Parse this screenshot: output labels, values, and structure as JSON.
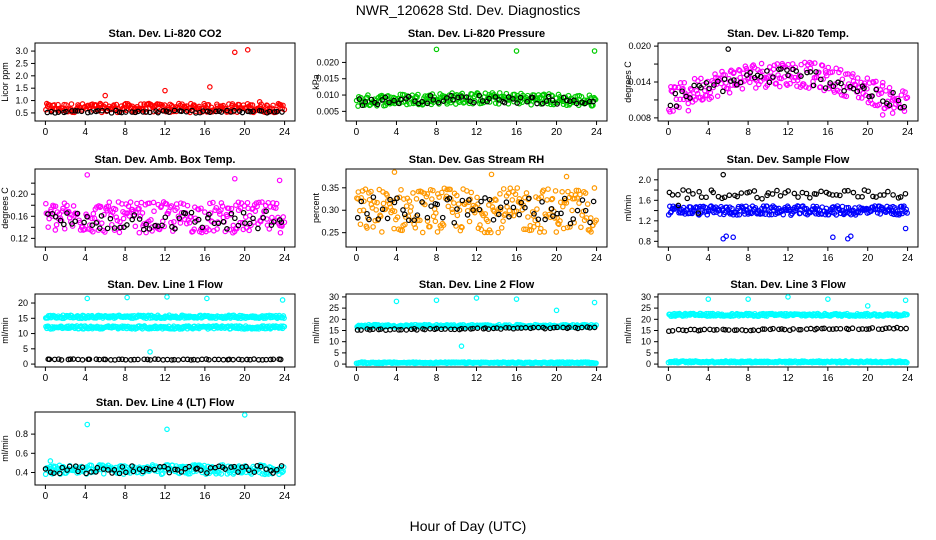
{
  "figure": {
    "title": "NWR_120628  Std. Dev. Diagnostics",
    "xlabel": "Hour of Day (UTC)"
  },
  "chart_data": [
    {
      "type": "scatter",
      "title": "Stan. Dev. Li-820 CO2",
      "ylabel": "Licor ppm",
      "xlim": [
        0,
        24
      ],
      "ylim": [
        0.3,
        3.2
      ],
      "xticks": [
        0,
        4,
        8,
        12,
        16,
        20,
        24
      ],
      "yticks": [
        0.5,
        1.0,
        1.5,
        2.0,
        2.5,
        3.0
      ],
      "ytick_labels": [
        "0.5",
        "1.0",
        "1.5",
        "2.0",
        "2.5",
        "3.0"
      ],
      "series": [
        {
          "color": "#ff0000",
          "band": {
            "center": 0.7,
            "spread": 0.18
          },
          "outliers": [
            [
              12,
              1.4
            ],
            [
              16.5,
              1.55
            ],
            [
              19,
              2.95
            ],
            [
              20.3,
              3.05
            ],
            [
              6,
              1.2
            ],
            [
              21.5,
              0.95
            ]
          ]
        },
        {
          "color": "#000000",
          "band": {
            "center": 0.55,
            "spread": 0.05
          },
          "outliers": []
        }
      ]
    },
    {
      "type": "scatter",
      "title": "Stan. Dev. Li-820 Pressure",
      "ylabel": "kPa",
      "xlim": [
        0,
        24
      ],
      "ylim": [
        0.003,
        0.025
      ],
      "xticks": [
        0,
        4,
        8,
        12,
        16,
        20,
        24
      ],
      "yticks": [
        0.005,
        0.01,
        0.015,
        0.02
      ],
      "ytick_labels": [
        "0.005",
        "0.010",
        "0.015",
        "0.020"
      ],
      "series": [
        {
          "color": "#00cc00",
          "band": {
            "center": 0.0082,
            "spread": 0.0018,
            "bump": 0.0008
          },
          "outliers": [
            [
              8,
              0.024
            ],
            [
              16,
              0.0235
            ],
            [
              23.8,
              0.0235
            ]
          ]
        },
        {
          "color": "#000000",
          "band": {
            "center": 0.008,
            "spread": 0.0012,
            "bump": 0.0008
          },
          "outliers": []
        }
      ]
    },
    {
      "type": "scatter",
      "title": "Stan. Dev. Li-820 Temp.",
      "ylabel": "degrees C",
      "xlim": [
        0,
        24
      ],
      "ylim": [
        0.008,
        0.02
      ],
      "xticks": [
        0,
        4,
        8,
        12,
        16,
        20,
        24
      ],
      "yticks": [
        0.008,
        0.011,
        0.014,
        0.017,
        0.02
      ],
      "ytick_labels": [
        "0.008",
        "",
        "0.014",
        "",
        "0.020"
      ],
      "series": [
        {
          "color": "#ff00ff",
          "band": {
            "center": 0.0125,
            "spread": 0.0022,
            "arch": 0.0045
          },
          "outliers": [
            [
              21.5,
              0.0085
            ],
            [
              22.5,
              0.0088
            ],
            [
              2,
              0.0092
            ]
          ]
        },
        {
          "color": "#000000",
          "band": {
            "center": 0.0122,
            "spread": 0.0014,
            "arch": 0.0045
          },
          "outliers": [
            [
              6,
              0.0195
            ]
          ]
        }
      ]
    },
    {
      "type": "scatter",
      "title": "Stan. Dev. Amb. Box Temp.",
      "ylabel": "degrees C",
      "xlim": [
        0,
        24
      ],
      "ylim": [
        0.11,
        0.24
      ],
      "xticks": [
        0,
        4,
        8,
        12,
        16,
        20,
        24
      ],
      "yticks": [
        0.12,
        0.14,
        0.16,
        0.18,
        0.2,
        0.22
      ],
      "ytick_labels": [
        "0.12",
        "",
        "0.16",
        "",
        "0.20",
        ""
      ],
      "series": [
        {
          "color": "#ff00ff",
          "band": {
            "center": 0.158,
            "spread": 0.028
          },
          "outliers": [
            [
              4.2,
              0.235
            ],
            [
              19,
              0.228
            ],
            [
              23.5,
              0.225
            ]
          ]
        },
        {
          "color": "#000000",
          "band": {
            "center": 0.152,
            "spread": 0.018
          },
          "outliers": []
        }
      ]
    },
    {
      "type": "scatter",
      "title": "Stan. Dev. Gas Stream RH",
      "ylabel": "percent",
      "xlim": [
        0,
        24
      ],
      "ylim": [
        0.225,
        0.385
      ],
      "xticks": [
        0,
        4,
        8,
        12,
        16,
        20,
        24
      ],
      "yticks": [
        0.25,
        0.3,
        0.35
      ],
      "ytick_labels": [
        "0.25",
        "0.30",
        "0.35"
      ],
      "series": [
        {
          "color": "#ff9900",
          "band": {
            "center": 0.3,
            "spread": 0.05
          },
          "outliers": [
            [
              3.8,
              0.385
            ],
            [
              13.5,
              0.38
            ],
            [
              21,
              0.375
            ]
          ]
        },
        {
          "color": "#000000",
          "band": {
            "center": 0.3,
            "spread": 0.03
          },
          "outliers": []
        }
      ]
    },
    {
      "type": "scatter",
      "title": "Stan. Dev. Sample Flow",
      "ylabel": "ml/min",
      "xlim": [
        0,
        24
      ],
      "ylim": [
        0.75,
        2.15
      ],
      "xticks": [
        0,
        4,
        8,
        12,
        16,
        20,
        24
      ],
      "yticks": [
        0.8,
        1.0,
        1.2,
        1.4,
        1.6,
        1.8,
        2.0
      ],
      "ytick_labels": [
        "0.8",
        "",
        "1.2",
        "",
        "1.6",
        "",
        "2.0"
      ],
      "series": [
        {
          "color": "#0000ff",
          "band": {
            "center": 1.4,
            "spread": 0.09
          },
          "outliers": [
            [
              5.5,
              0.85
            ],
            [
              5.8,
              0.9
            ],
            [
              6.5,
              0.88
            ],
            [
              16.5,
              0.88
            ],
            [
              18,
              0.85
            ],
            [
              18.3,
              0.9
            ],
            [
              23.8,
              1.05
            ]
          ]
        },
        {
          "color": "#000000",
          "band": {
            "center": 1.72,
            "spread": 0.09
          },
          "outliers": [
            [
              5.5,
              2.1
            ],
            [
              1,
              1.5
            ],
            [
              3,
              1.35
            ]
          ]
        }
      ]
    },
    {
      "type": "scatter",
      "title": "Stan. Dev. Line 1 Flow",
      "ylabel": "ml/min",
      "xlim": [
        0,
        24
      ],
      "ylim": [
        0,
        22
      ],
      "xticks": [
        0,
        4,
        8,
        12,
        16,
        20,
        24
      ],
      "yticks": [
        0,
        5,
        10,
        15,
        20
      ],
      "ytick_labels": [
        "0",
        "5",
        "10",
        "15",
        "20"
      ],
      "series": [
        {
          "color": "#00ffff",
          "band": {
            "center": 15.5,
            "spread": 0.5
          },
          "outliers": [
            [
              4.2,
              21.5
            ],
            [
              8.2,
              21.8
            ],
            [
              12.2,
              22
            ],
            [
              16.2,
              21.5
            ],
            [
              23.8,
              21
            ]
          ]
        },
        {
          "color": "#00ffff",
          "band": {
            "center": 12,
            "spread": 0.5
          },
          "outliers": [
            [
              10.5,
              4
            ]
          ]
        },
        {
          "color": "#000000",
          "band": {
            "center": 1.5,
            "spread": 0.15
          },
          "outliers": []
        }
      ]
    },
    {
      "type": "scatter",
      "title": "Stan. Dev. Line 2 Flow",
      "ylabel": "ml/min",
      "xlim": [
        0,
        24
      ],
      "ylim": [
        0,
        30
      ],
      "xticks": [
        0,
        4,
        8,
        12,
        16,
        20,
        24
      ],
      "yticks": [
        0,
        5,
        10,
        15,
        20,
        25,
        30
      ],
      "ytick_labels": [
        "0",
        "5",
        "10",
        "15",
        "20",
        "25",
        "30"
      ],
      "series": [
        {
          "color": "#00ffff",
          "band": {
            "center": 17,
            "spread": 0.6
          },
          "outliers": [
            [
              4,
              28
            ],
            [
              8,
              28.5
            ],
            [
              12,
              29.5
            ],
            [
              16,
              29
            ],
            [
              10.5,
              8
            ],
            [
              20,
              24
            ],
            [
              23.8,
              27.5
            ]
          ]
        },
        {
          "color": "#00ffff",
          "band": {
            "center": 0.6,
            "spread": 0.3
          },
          "outliers": []
        },
        {
          "color": "#000000",
          "band": {
            "center": 15.8,
            "spread": 0.3,
            "slope": 0.04
          },
          "outliers": []
        }
      ]
    },
    {
      "type": "scatter",
      "title": "Stan. Dev. Line 3 Flow",
      "ylabel": "ml/min",
      "xlim": [
        0,
        24
      ],
      "ylim": [
        0,
        30
      ],
      "xticks": [
        0,
        4,
        8,
        12,
        16,
        20,
        24
      ],
      "yticks": [
        0,
        5,
        10,
        15,
        20,
        25,
        30
      ],
      "ytick_labels": [
        "0",
        "5",
        "10",
        "15",
        "20",
        "25",
        "30"
      ],
      "series": [
        {
          "color": "#00ffff",
          "band": {
            "center": 22,
            "spread": 0.6
          },
          "outliers": [
            [
              4,
              29
            ],
            [
              8,
              29
            ],
            [
              12,
              30.5
            ],
            [
              16,
              29
            ],
            [
              20,
              26
            ],
            [
              23.8,
              28.5
            ]
          ]
        },
        {
          "color": "#00ffff",
          "band": {
            "center": 1,
            "spread": 0.4
          },
          "outliers": []
        },
        {
          "color": "#000000",
          "band": {
            "center": 15.5,
            "spread": 0.4,
            "slope": 0.04
          },
          "outliers": []
        }
      ]
    },
    {
      "type": "scatter",
      "title": "Stan. Dev. Line 4 (LT) Flow",
      "ylabel": "ml/min",
      "xlim": [
        0,
        24
      ],
      "ylim": [
        0.3,
        1.0
      ],
      "xticks": [
        0,
        4,
        8,
        12,
        16,
        20,
        24
      ],
      "yticks": [
        0.4,
        0.6,
        0.8
      ],
      "ytick_labels": [
        "0.4",
        "0.6",
        "0.8"
      ],
      "series": [
        {
          "color": "#00ffff",
          "band": {
            "center": 0.43,
            "spread": 0.05
          },
          "outliers": [
            [
              4.2,
              0.9
            ],
            [
              12.2,
              0.85
            ],
            [
              20,
              1.0
            ],
            [
              0.5,
              0.52
            ]
          ]
        },
        {
          "color": "#000000",
          "band": {
            "center": 0.43,
            "spread": 0.04
          },
          "outliers": []
        }
      ]
    }
  ]
}
